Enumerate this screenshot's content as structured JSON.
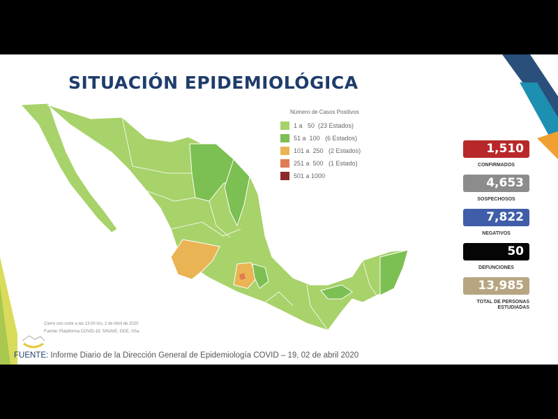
{
  "title": "SITUACIÓN EPIDEMIOLÓGICA",
  "legend": {
    "title": "Número de Casos Positivos",
    "items": [
      {
        "label": "1 a   50  (23 Estados)",
        "color": "#a8d26a"
      },
      {
        "label": "51 a  100   (6 Estados)",
        "color": "#7cbf52"
      },
      {
        "label": "101 a  250   (2 Estados)",
        "color": "#eab454"
      },
      {
        "label": "251 a  500   (1 Estado)",
        "color": "#e07a52"
      },
      {
        "label": "501 a 1000",
        "color": "#8b2a2a"
      }
    ]
  },
  "stats": [
    {
      "value": "1,510",
      "label": "CONFIRMADOS",
      "color": "#b8282a"
    },
    {
      "value": "4,653",
      "label": "SOSPECHOSOS",
      "color": "#8c8c8c"
    },
    {
      "value": "7,822",
      "label": "NEGATIVOS",
      "color": "#3f5da8"
    },
    {
      "value": "50",
      "label": "DEFUNCIONES",
      "color": "#050505"
    },
    {
      "value": "13,985",
      "label": "TOTAL DE PERSONAS ESTUDIADAS",
      "color": "#b7a582"
    }
  ],
  "notes": {
    "line1": "Cierre con corte a las 13:00 hrs, 2 de Abril de 2020",
    "line2": "Fuente: Plataforma COVID-19, SINAVE, DGE, SSa."
  },
  "source": {
    "lead": "FUENTE:",
    "text": " Informe Diario de la Dirección General de Epidemiología  COVID – 19, 02 de abril 2020"
  }
}
